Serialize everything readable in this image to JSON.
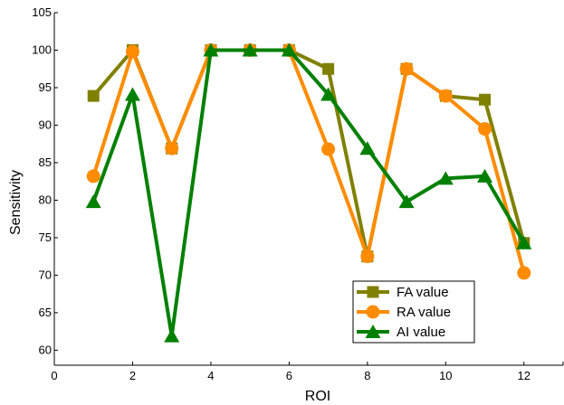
{
  "chart_data": {
    "type": "line",
    "xlabel": "ROI",
    "ylabel": "Sensitivity",
    "xlim": [
      0,
      13
    ],
    "ylim": [
      58,
      105
    ],
    "x_ticks": [
      0,
      2,
      4,
      6,
      8,
      10,
      12
    ],
    "y_ticks": [
      60,
      65,
      70,
      75,
      80,
      85,
      90,
      95,
      100,
      105
    ],
    "x": [
      1,
      2,
      3,
      4,
      5,
      6,
      7,
      8,
      9,
      10,
      11,
      12
    ],
    "grid": false,
    "legend_position": "bottom-right",
    "series": [
      {
        "name": "FA value",
        "marker": "square",
        "color": "#808000",
        "values": [
          93.9,
          100,
          86.9,
          100,
          100,
          100,
          97.5,
          72.5,
          97.5,
          93.9,
          93.4,
          74.3
        ]
      },
      {
        "name": "RA value",
        "marker": "circle",
        "color": "#ff8c00",
        "values": [
          83.2,
          99.8,
          86.9,
          100,
          100,
          100,
          86.8,
          72.5,
          97.5,
          93.9,
          89.5,
          70.3
        ]
      },
      {
        "name": "AI value",
        "marker": "triangle",
        "color": "#008000",
        "values": [
          79.8,
          94.1,
          61.9,
          100,
          100,
          100,
          94.1,
          86.9,
          79.8,
          82.9,
          83.2,
          74.3
        ]
      }
    ]
  }
}
